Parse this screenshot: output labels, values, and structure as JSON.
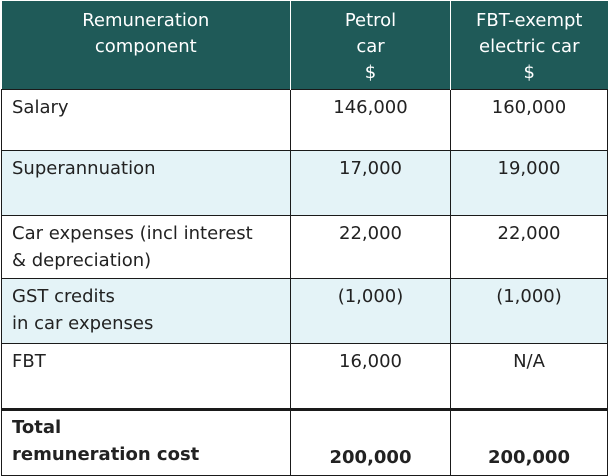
{
  "header": {
    "component": [
      "Remuneration",
      "component"
    ],
    "petrol": [
      "Petrol",
      "car",
      "$"
    ],
    "electric": [
      "FBT-exempt",
      "electric car",
      "$"
    ]
  },
  "rows": [
    {
      "label": [
        "Salary"
      ],
      "petrol": "146,000",
      "electric": "160,000"
    },
    {
      "label": [
        "Superannuation"
      ],
      "petrol": "17,000",
      "electric": "19,000"
    },
    {
      "label": [
        "Car expenses (incl interest",
        "& depreciation)"
      ],
      "petrol": "22,000",
      "electric": "22,000"
    },
    {
      "label": [
        "GST credits",
        "in car expenses"
      ],
      "petrol": "(1,000)",
      "electric": "(1,000)"
    },
    {
      "label": [
        "FBT"
      ],
      "petrol": "16,000",
      "electric": "N/A"
    }
  ],
  "total": {
    "label": [
      "Total",
      "remuneration cost"
    ],
    "petrol": "200,000",
    "electric": "200,000"
  }
}
